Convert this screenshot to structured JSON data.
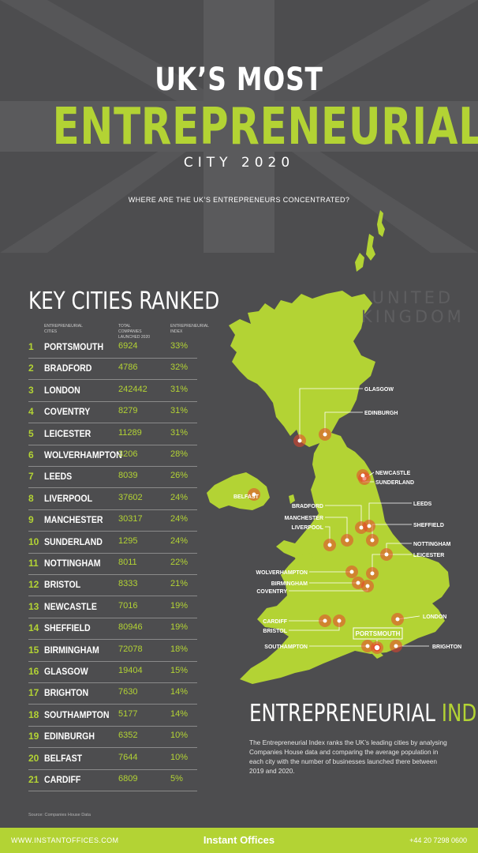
{
  "title": {
    "line1": "UK’S MOST",
    "line2": "ENTREPRENEURIAL",
    "line3": "CITY 2020"
  },
  "question": "WHERE ARE THE UK’S ENTREPRENEURS CONCENTRATED?",
  "key_heading": "KEY CITIES RANKED",
  "map_title": {
    "line1": "UNITED",
    "line2": "KINGDOM"
  },
  "colors": {
    "background": "#4d4d4f",
    "accent": "#b3d334",
    "map": "#b3d334",
    "marker": "#e8432c"
  },
  "chart_data": {
    "type": "table",
    "columns": [
      "ENTREPRENEURIAL CITIES",
      "TOTAL COMPANIES LAUNCHED 2020",
      "ENTREPRENEURIAL INDEX"
    ],
    "rows": [
      {
        "rank": "1",
        "city": "PORTSMOUTH",
        "companies": "6924",
        "index": "33%"
      },
      {
        "rank": "2",
        "city": "BRADFORD",
        "companies": "4786",
        "index": "32%"
      },
      {
        "rank": "3",
        "city": "LONDON",
        "companies": "242442",
        "index": "31%"
      },
      {
        "rank": "4",
        "city": "COVENTRY",
        "companies": "8279",
        "index": "31%"
      },
      {
        "rank": "5",
        "city": "LEICESTER",
        "companies": "11289",
        "index": "31%"
      },
      {
        "rank": "6",
        "city": "WOLVERHAMPTON",
        "companies": "3206",
        "index": "28%"
      },
      {
        "rank": "7",
        "city": "LEEDS",
        "companies": "8039",
        "index": "26%"
      },
      {
        "rank": "8",
        "city": "LIVERPOOL",
        "companies": "37602",
        "index": "24%"
      },
      {
        "rank": "9",
        "city": "MANCHESTER",
        "companies": "30317",
        "index": "24%"
      },
      {
        "rank": "10",
        "city": "SUNDERLAND",
        "companies": "1295",
        "index": "24%"
      },
      {
        "rank": "11",
        "city": "NOTTINGHAM",
        "companies": "8011",
        "index": "22%"
      },
      {
        "rank": "12",
        "city": "BRISTOL",
        "companies": "8333",
        "index": "21%"
      },
      {
        "rank": "13",
        "city": "NEWCASTLE",
        "companies": "7016",
        "index": "19%"
      },
      {
        "rank": "14",
        "city": "SHEFFIELD",
        "companies": "80946",
        "index": "19%"
      },
      {
        "rank": "15",
        "city": "BIRMINGHAM",
        "companies": "72078",
        "index": "18%"
      },
      {
        "rank": "16",
        "city": "GLASGOW",
        "companies": "19404",
        "index": "15%"
      },
      {
        "rank": "17",
        "city": "BRIGHTON",
        "companies": "7630",
        "index": "14%"
      },
      {
        "rank": "18",
        "city": "SOUTHAMPTON",
        "companies": "5177",
        "index": "14%"
      },
      {
        "rank": "19",
        "city": "EDINBURGH",
        "companies": "6352",
        "index": "10%"
      },
      {
        "rank": "20",
        "city": "BELFAST",
        "companies": "7644",
        "index": "10%"
      },
      {
        "rank": "21",
        "city": "CARDIFF",
        "companies": "6809",
        "index": "5%"
      }
    ]
  },
  "map_labels": {
    "glasgow": "GLASGOW",
    "edinburgh": "EDINBURGH",
    "newcastle": "NEWCASTLE",
    "sunderland": "SUNDERLAND",
    "belfast": "BELFAST",
    "bradford": "BRADFORD",
    "leeds": "LEEDS",
    "manchester": "MANCHESTER",
    "liverpool": "LIVERPOOL",
    "sheffield": "SHEFFIELD",
    "nottingham": "NOTTINGHAM",
    "leicester": "LEICESTER",
    "wolverhampton": "WOLVERHAMPTON",
    "birmingham": "BIRMINGHAM",
    "coventry": "COVENTRY",
    "cardiff": "CARDIFF",
    "bristol": "BRISTOL",
    "london": "LONDON",
    "portsmouth": "PORTSMOUTH",
    "southampton": "SOUTHAMPTON",
    "brighton": "BRIGHTON"
  },
  "index_section": {
    "heading_word1": "ENTREPRENEURIAL",
    "heading_word2": "INDEX",
    "description": "The Entrepreneurial Index ranks the UK’s leading cities by analysing Companies House data and comparing the average population in each city with the number of businesses launched there between 2019 and 2020."
  },
  "source": "Source: Companies House Data",
  "footer": {
    "url": "WWW.INSTANTOFFICES.COM",
    "brand": "Instant Offices",
    "phone": "+44 20 7298 0600"
  }
}
